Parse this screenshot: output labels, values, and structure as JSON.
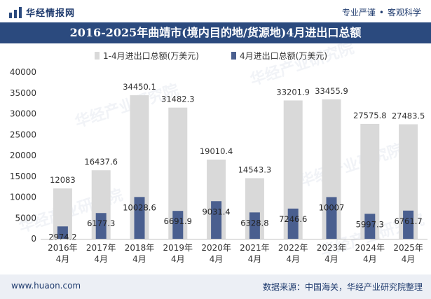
{
  "header": {
    "brand": "华经情报网",
    "tagline_left": "专业严谨",
    "tagline_sep": "•",
    "tagline_right": "客观科学"
  },
  "footer": {
    "website": "www.huaon.com",
    "source": "数据来源：中国海关，华经产业研究院整理"
  },
  "watermark": "华经产业研究院",
  "colors": {
    "title_bg": "#2b4a7e",
    "series_ytd": "#d9d9d9",
    "series_month": "#4a5f8f",
    "brand": "#1f3b6e"
  },
  "chart_data": {
    "type": "bar",
    "title": "2016-2025年曲靖市(境内目的地/货源地)4月进出口总额",
    "categories": [
      [
        "2016年",
        "4月"
      ],
      [
        "2017年",
        "4月"
      ],
      [
        "2018年",
        "4月"
      ],
      [
        "2019年",
        "4月"
      ],
      [
        "2020年",
        "4月"
      ],
      [
        "2021年",
        "4月"
      ],
      [
        "2022年",
        "4月"
      ],
      [
        "2023年",
        "4月"
      ],
      [
        "2024年",
        "4月"
      ],
      [
        "2025年",
        "4月"
      ]
    ],
    "series": [
      {
        "name": "1-4月进出口总额(万美元)",
        "values": [
          12083,
          16437.6,
          34450.1,
          31482.3,
          19010.4,
          14543.3,
          33201.9,
          33455.9,
          27575.8,
          27483.5
        ],
        "labels": [
          "12083",
          "16437.6",
          "34450.1",
          "31482.3",
          "19010.4",
          "14543.3",
          "33201.9",
          "33455.9",
          "27575.8",
          "27483.5"
        ]
      },
      {
        "name": "4月进出口总额(万美元)",
        "values": [
          2974.2,
          6177.3,
          10028.6,
          6691.9,
          9031.4,
          6328.8,
          7246.6,
          10007,
          5997.3,
          6761.7
        ],
        "labels": [
          "2974.2",
          "6177.3",
          "10028.6",
          "6691.9",
          "9031.4",
          "6328.8",
          "7246.6",
          "10007",
          "5997.3",
          "6761.7"
        ]
      }
    ],
    "ylim": [
      0,
      40000
    ],
    "yticks": [
      "0",
      "5000",
      "10000",
      "15000",
      "20000",
      "25000",
      "30000",
      "35000",
      "40000"
    ],
    "legend_position": "top-center",
    "grid": false
  }
}
